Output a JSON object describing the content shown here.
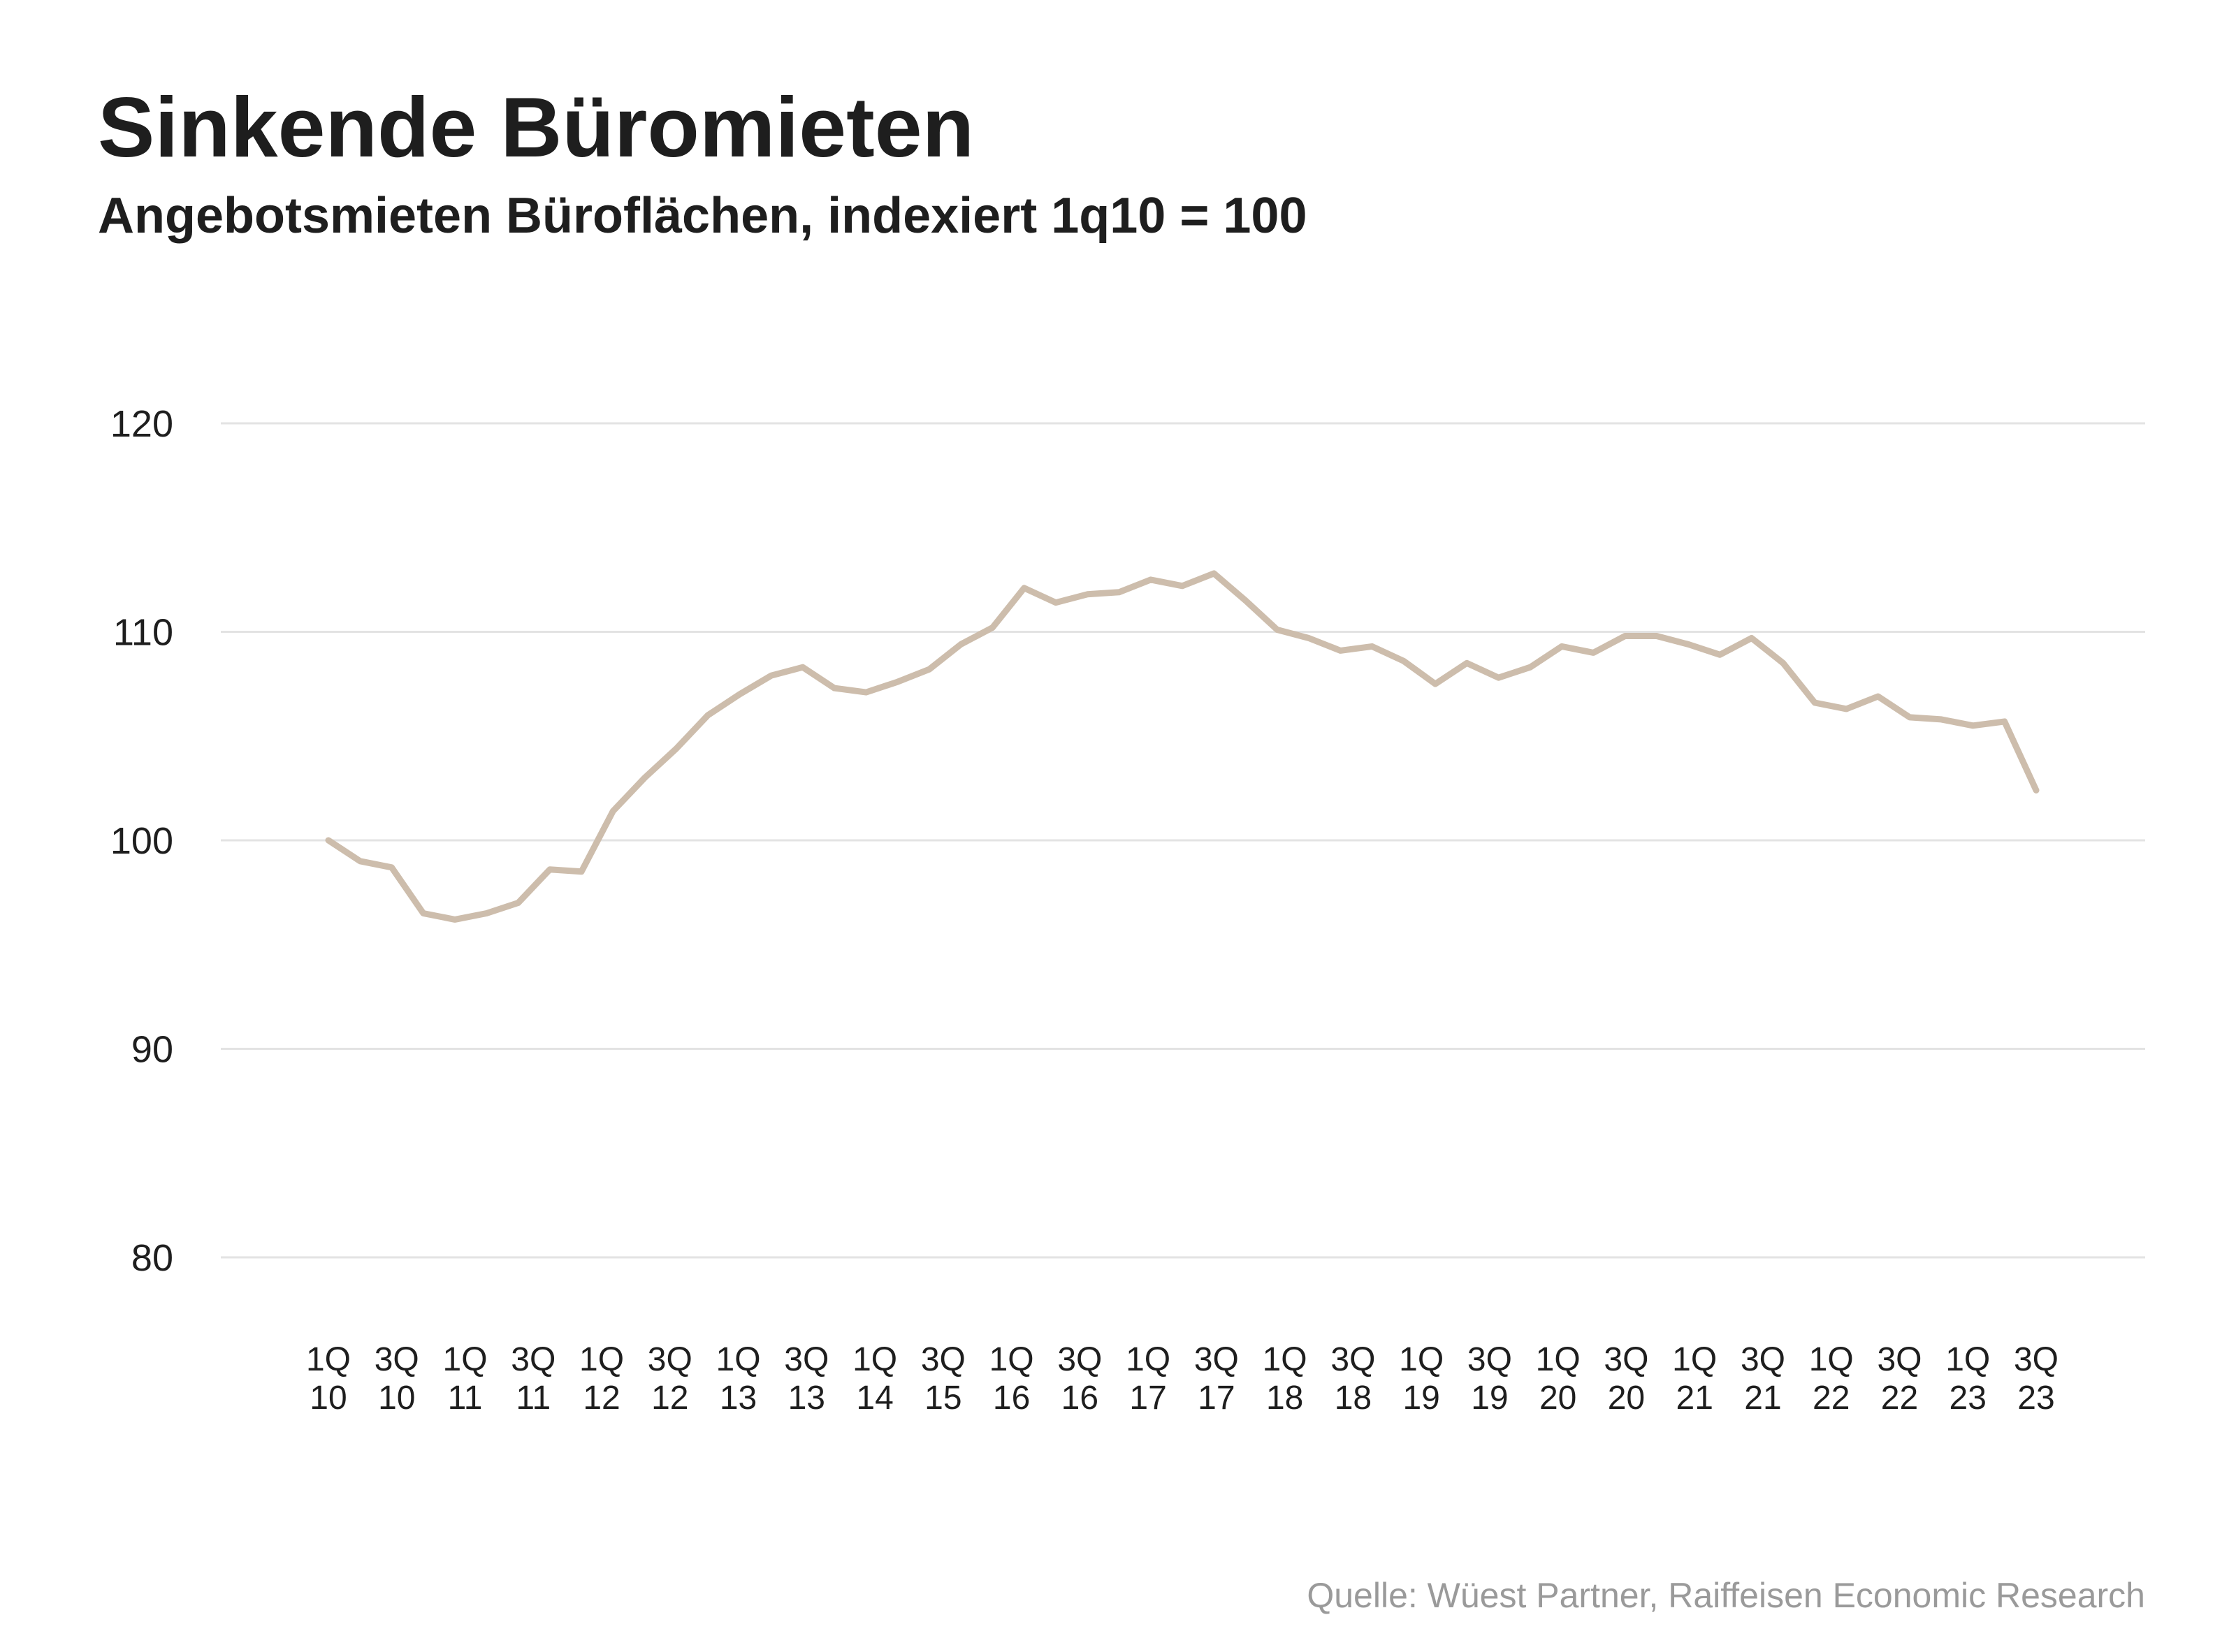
{
  "header": {
    "title": "Sinkende Büromieten",
    "subtitle": "Angebotsmieten Büroflächen, indexiert 1q10 = 100"
  },
  "footer": {
    "source": "Quelle: Wüest Partner, Raiffeisen Economic Research"
  },
  "colors": {
    "line": "#cdbdac",
    "grid": "#e3e3e3",
    "text": "#1e1e1e",
    "source": "#9a9a9a"
  },
  "chart_data": {
    "type": "line",
    "title": "Sinkende Büromieten",
    "subtitle": "Angebotsmieten Büroflächen, indexiert 1q10 = 100",
    "xlabel": "",
    "ylabel": "",
    "ylim": [
      80,
      120
    ],
    "yticks": [
      80,
      90,
      100,
      110,
      120
    ],
    "grid": true,
    "legend": "none",
    "x_tick_labels": [
      [
        "1Q",
        "10"
      ],
      [
        "3Q",
        "10"
      ],
      [
        "1Q",
        "11"
      ],
      [
        "3Q",
        "11"
      ],
      [
        "1Q",
        "12"
      ],
      [
        "3Q",
        "12"
      ],
      [
        "1Q",
        "13"
      ],
      [
        "3Q",
        "13"
      ],
      [
        "1Q",
        "14"
      ],
      [
        "3Q",
        "15"
      ],
      [
        "1Q",
        "16"
      ],
      [
        "3Q",
        "16"
      ],
      [
        "1Q",
        "17"
      ],
      [
        "3Q",
        "17"
      ],
      [
        "1Q",
        "18"
      ],
      [
        "3Q",
        "18"
      ],
      [
        "1Q",
        "19"
      ],
      [
        "3Q",
        "19"
      ],
      [
        "1Q",
        "20"
      ],
      [
        "3Q",
        "20"
      ],
      [
        "1Q",
        "21"
      ],
      [
        "3Q",
        "21"
      ],
      [
        "1Q",
        "22"
      ],
      [
        "3Q",
        "22"
      ],
      [
        "1Q",
        "23"
      ],
      [
        "3Q",
        "23"
      ]
    ],
    "series": [
      {
        "name": "Angebotsmieten Büroflächen",
        "values": [
          100.0,
          99.0,
          98.7,
          96.5,
          96.2,
          96.5,
          97.0,
          98.6,
          98.5,
          101.4,
          103.0,
          104.4,
          106.0,
          107.0,
          107.9,
          108.3,
          107.3,
          107.1,
          107.6,
          108.2,
          109.4,
          110.2,
          112.1,
          111.4,
          111.8,
          111.9,
          112.5,
          112.2,
          112.8,
          111.5,
          110.1,
          109.7,
          109.1,
          109.3,
          108.6,
          107.5,
          108.5,
          107.8,
          108.3,
          109.3,
          109.0,
          109.8,
          109.8,
          109.4,
          108.9,
          109.7,
          108.5,
          106.6,
          106.3,
          106.9,
          105.9,
          105.8,
          105.5,
          105.7,
          102.4
        ]
      }
    ]
  }
}
